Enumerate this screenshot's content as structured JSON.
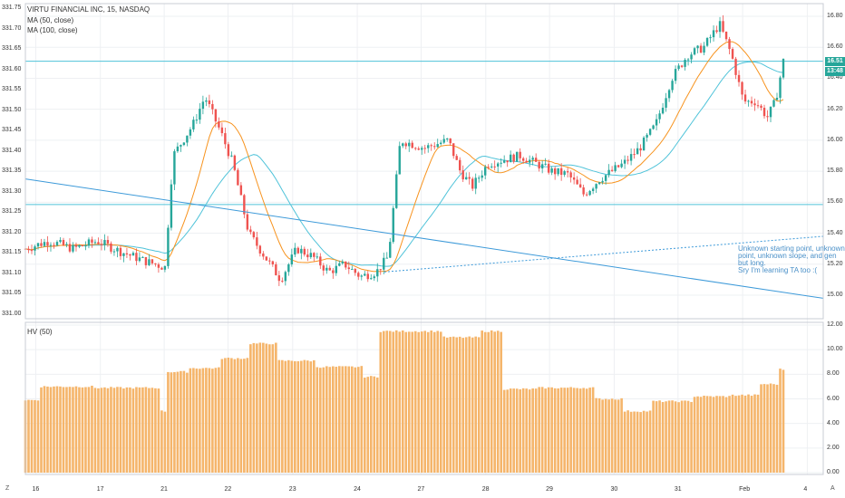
{
  "chart_data": [
    {
      "type": "candlestick",
      "title": "VIRTU FINANCIAL INC, 15, NASDAQ",
      "indicators": [
        {
          "name": "MA (50, close)",
          "color": "#f7931e"
        },
        {
          "name": "MA (100, close)",
          "color": "#4fc3d9"
        }
      ],
      "left_axis_ticks": [
        "331.75",
        "331.70",
        "331.65",
        "331.60",
        "331.55",
        "331.50",
        "331.45",
        "331.40",
        "331.35",
        "331.30",
        "331.25",
        "331.20",
        "331.15",
        "331.10",
        "331.05",
        "331.00"
      ],
      "right_axis_ticks": [
        "16.80",
        "16.60",
        "16.40",
        "16.20",
        "16.00",
        "15.80",
        "15.60",
        "15.40",
        "15.20",
        "15.00"
      ],
      "ylim": [
        14.93,
        16.86
      ],
      "x_ticks": [
        "16",
        "17",
        "21",
        "22",
        "23",
        "24",
        "27",
        "28",
        "29",
        "30",
        "31",
        "Feb",
        "4"
      ],
      "current_price": "16.51",
      "countdown": "13:48",
      "horizontal_levels": [
        16.51,
        15.585
      ],
      "trendlines": [
        {
          "name": "descending",
          "style": "solid",
          "from": [
            0,
            15.75
          ],
          "to": [
            1,
            14.98
          ]
        },
        {
          "name": "ascending",
          "style": "dotted",
          "from": [
            0.45,
            15.15
          ],
          "to": [
            1,
            15.38
          ]
        }
      ],
      "annotation": "Unknown starting point, unknown\npoint, unknown slope, and gen\nbut long.\nSry I'm learning TA too :(",
      "colors": {
        "up": "#26a69a",
        "down": "#ef5350",
        "level": "#4fc3d9",
        "trendline": "#3d9ad9"
      },
      "close_path": [
        {
          "x": 0.0,
          "y": 15.3
        },
        {
          "x": 0.03,
          "y": 15.35
        },
        {
          "x": 0.06,
          "y": 15.3
        },
        {
          "x": 0.09,
          "y": 15.35
        },
        {
          "x": 0.12,
          "y": 15.28
        },
        {
          "x": 0.15,
          "y": 15.22
        },
        {
          "x": 0.175,
          "y": 15.18
        },
        {
          "x": 0.185,
          "y": 15.9
        },
        {
          "x": 0.21,
          "y": 16.1
        },
        {
          "x": 0.225,
          "y": 16.28
        },
        {
          "x": 0.245,
          "y": 16.05
        },
        {
          "x": 0.26,
          "y": 15.85
        },
        {
          "x": 0.28,
          "y": 15.4
        },
        {
          "x": 0.3,
          "y": 15.25
        },
        {
          "x": 0.32,
          "y": 15.1
        },
        {
          "x": 0.34,
          "y": 15.3
        },
        {
          "x": 0.36,
          "y": 15.25
        },
        {
          "x": 0.38,
          "y": 15.15
        },
        {
          "x": 0.4,
          "y": 15.2
        },
        {
          "x": 0.42,
          "y": 15.12
        },
        {
          "x": 0.44,
          "y": 15.15
        },
        {
          "x": 0.455,
          "y": 15.25
        },
        {
          "x": 0.462,
          "y": 15.6
        },
        {
          "x": 0.47,
          "y": 16.0
        },
        {
          "x": 0.5,
          "y": 15.95
        },
        {
          "x": 0.53,
          "y": 16.0
        },
        {
          "x": 0.545,
          "y": 15.8
        },
        {
          "x": 0.56,
          "y": 15.7
        },
        {
          "x": 0.58,
          "y": 15.85
        },
        {
          "x": 0.62,
          "y": 15.9
        },
        {
          "x": 0.66,
          "y": 15.8
        },
        {
          "x": 0.68,
          "y": 15.78
        },
        {
          "x": 0.7,
          "y": 15.65
        },
        {
          "x": 0.72,
          "y": 15.75
        },
        {
          "x": 0.75,
          "y": 15.85
        },
        {
          "x": 0.77,
          "y": 15.95
        },
        {
          "x": 0.79,
          "y": 16.1
        },
        {
          "x": 0.81,
          "y": 16.4
        },
        {
          "x": 0.83,
          "y": 16.55
        },
        {
          "x": 0.85,
          "y": 16.6
        },
        {
          "x": 0.87,
          "y": 16.75
        },
        {
          "x": 0.885,
          "y": 16.55
        },
        {
          "x": 0.9,
          "y": 16.25
        },
        {
          "x": 0.915,
          "y": 16.25
        },
        {
          "x": 0.93,
          "y": 16.15
        },
        {
          "x": 0.94,
          "y": 16.25
        },
        {
          "x": 0.95,
          "y": 16.51
        }
      ]
    },
    {
      "type": "bar",
      "title": "HV (50)",
      "right_axis_ticks": [
        "12.00",
        "10.00",
        "8.00",
        "6.00",
        "4.00",
        "2.00",
        "0.00"
      ],
      "ylim": [
        0,
        12
      ],
      "color": "#f5b56b",
      "steps": [
        {
          "x": 0.0,
          "value": 5.9
        },
        {
          "x": 0.02,
          "value": 7.0
        },
        {
          "x": 0.09,
          "value": 6.9
        },
        {
          "x": 0.175,
          "value": 5.0
        },
        {
          "x": 0.185,
          "value": 8.2
        },
        {
          "x": 0.215,
          "value": 8.5
        },
        {
          "x": 0.255,
          "value": 9.3
        },
        {
          "x": 0.29,
          "value": 10.5
        },
        {
          "x": 0.33,
          "value": 9.1
        },
        {
          "x": 0.38,
          "value": 8.6
        },
        {
          "x": 0.44,
          "value": 7.8
        },
        {
          "x": 0.46,
          "value": 11.5
        },
        {
          "x": 0.545,
          "value": 11.0
        },
        {
          "x": 0.595,
          "value": 11.5
        },
        {
          "x": 0.625,
          "value": 6.8
        },
        {
          "x": 0.67,
          "value": 6.9
        },
        {
          "x": 0.745,
          "value": 6.0
        },
        {
          "x": 0.78,
          "value": 5.0
        },
        {
          "x": 0.82,
          "value": 5.8
        },
        {
          "x": 0.87,
          "value": 6.2
        },
        {
          "x": 0.92,
          "value": 6.3
        },
        {
          "x": 0.96,
          "value": 7.2
        },
        {
          "x": 0.985,
          "value": 8.4
        }
      ]
    }
  ],
  "controls": {
    "z_label": "Z",
    "auto_label": "A"
  }
}
